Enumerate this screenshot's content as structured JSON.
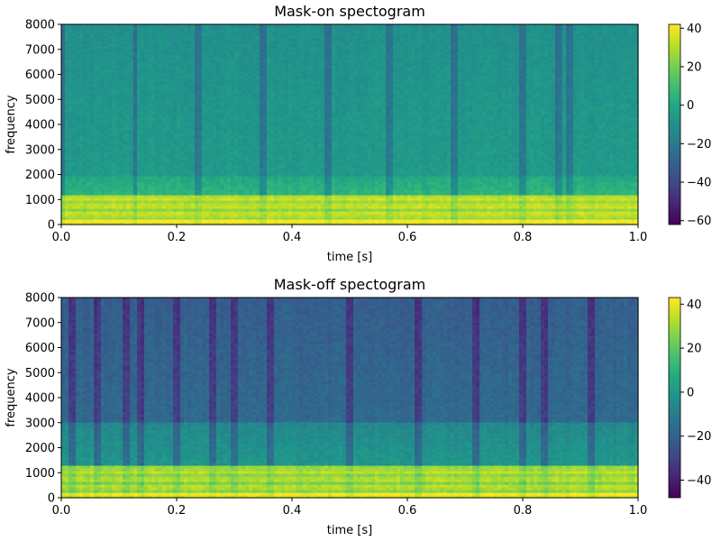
{
  "chart_data": [
    {
      "type": "heatmap",
      "title": "Mask-on spectogram",
      "xlabel": "time [s]",
      "ylabel": "frequency",
      "xlim": [
        0.0,
        1.0
      ],
      "ylim": [
        0,
        8000
      ],
      "x_ticks": [
        "0.0",
        "0.2",
        "0.4",
        "0.6",
        "0.8",
        "1.0"
      ],
      "y_ticks": [
        "0",
        "1000",
        "2000",
        "3000",
        "4000",
        "5000",
        "6000",
        "7000",
        "8000"
      ],
      "colormap": "viridis",
      "colorbar": {
        "vmin": -62,
        "vmax": 42,
        "ticks": [
          "−60",
          "−40",
          "−20",
          "0",
          "20",
          "40"
        ]
      },
      "dark_stripe_times": [
        0.002,
        0.0,
        0.128,
        0.24,
        0.35,
        0.46,
        0.57,
        0.68,
        0.8,
        0.86,
        0.88
      ],
      "bands": [
        {
          "freq_range": [
            0,
            1150
          ],
          "level": "high (20 to 40 dB)"
        },
        {
          "freq_range": [
            1150,
            2000
          ],
          "level": "medium (about 0 to 10 dB)"
        },
        {
          "freq_range": [
            2000,
            8000
          ],
          "level": "low (about -5 to -15 dB)"
        }
      ]
    },
    {
      "type": "heatmap",
      "title": "Mask-off spectogram",
      "xlabel": "time [s]",
      "ylabel": "frequency",
      "xlim": [
        0.0,
        1.0
      ],
      "ylim": [
        0,
        8000
      ],
      "x_ticks": [
        "0.0",
        "0.2",
        "0.4",
        "0.6",
        "0.8",
        "1.0"
      ],
      "y_ticks": [
        "0",
        "1000",
        "2000",
        "3000",
        "4000",
        "5000",
        "6000",
        "7000",
        "8000"
      ],
      "colormap": "viridis",
      "colorbar": {
        "vmin": -48,
        "vmax": 43,
        "ticks": [
          "−40",
          "−20",
          "0",
          "20",
          "40"
        ]
      },
      "dark_stripe_times": [
        0.02,
        0.06,
        0.11,
        0.14,
        0.2,
        0.26,
        0.3,
        0.36,
        0.5,
        0.62,
        0.72,
        0.8,
        0.84,
        0.92
      ],
      "bands": [
        {
          "freq_range": [
            0,
            1250
          ],
          "level": "high (20 to 40 dB)"
        },
        {
          "freq_range": [
            1250,
            3000
          ],
          "level": "medium (about -5 to 5 dB)"
        },
        {
          "freq_range": [
            3000,
            8000
          ],
          "level": "low (about -15 to -25 dB)"
        }
      ]
    }
  ]
}
